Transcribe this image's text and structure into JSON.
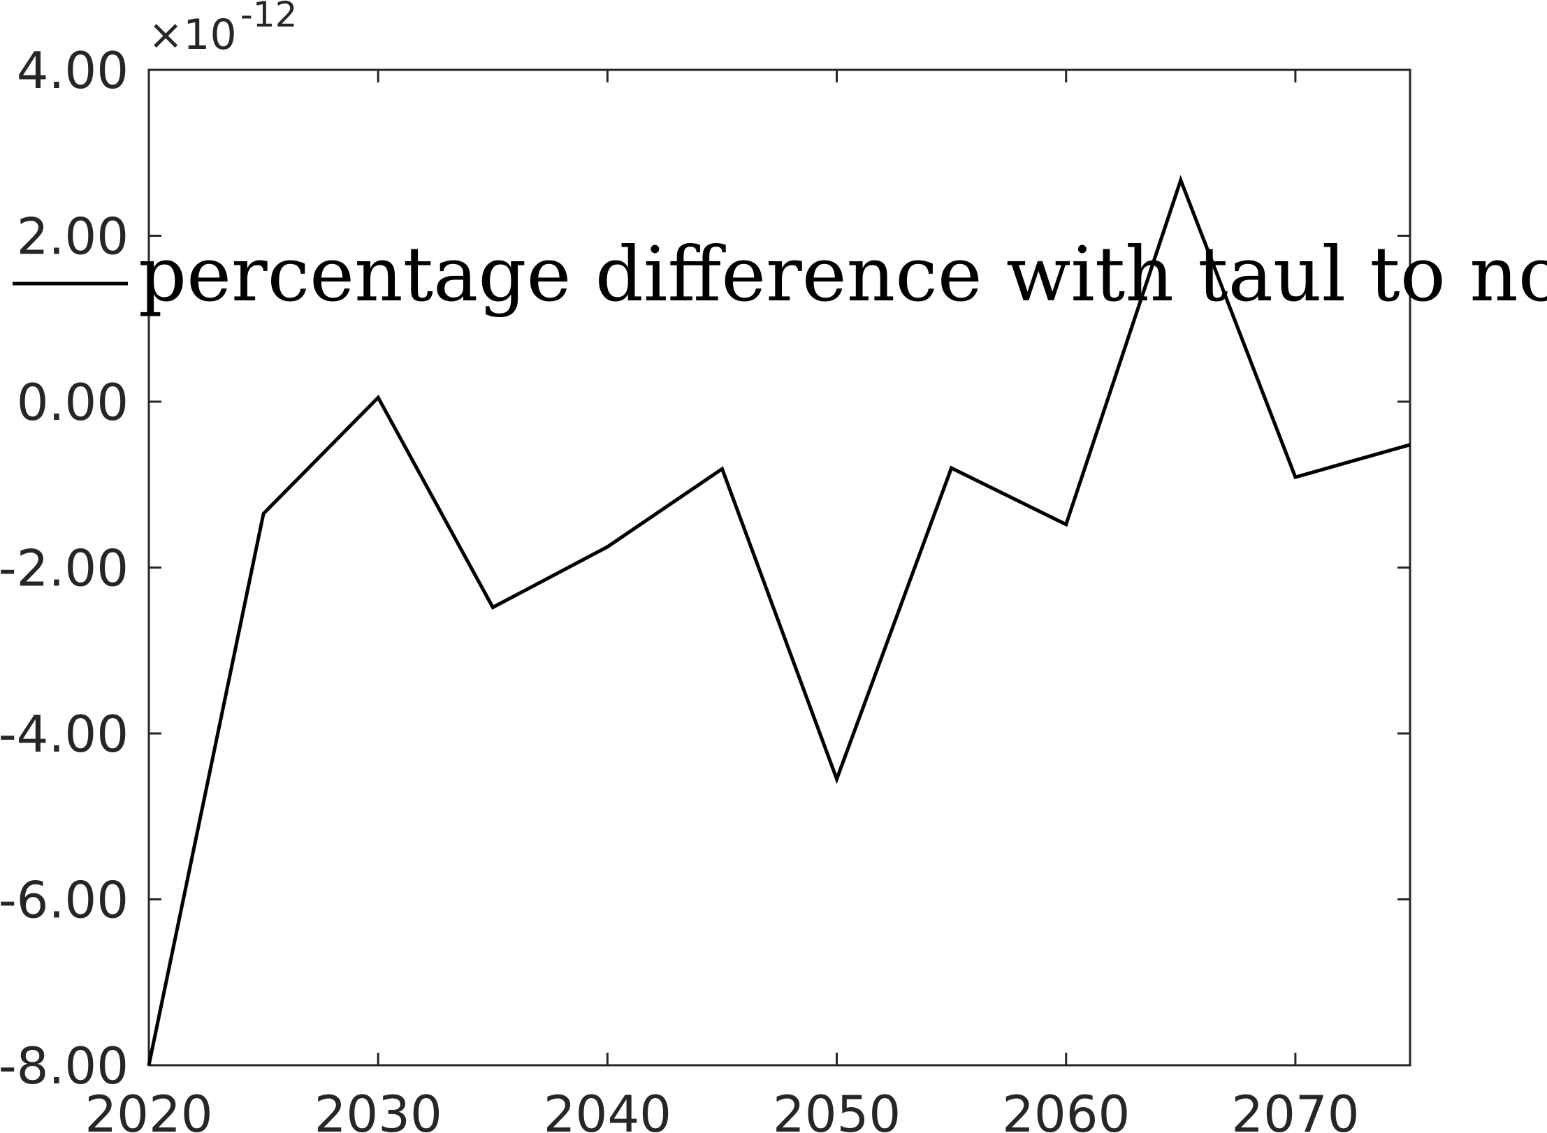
{
  "chart_data": {
    "type": "line",
    "title": "",
    "xlabel": "",
    "ylabel": "",
    "x": [
      2020,
      2025,
      2030,
      2035,
      2040,
      2045,
      2050,
      2055,
      2060,
      2065,
      2070,
      2075
    ],
    "series": [
      {
        "name": "percentage difference with taul to no taul",
        "values": [
          -8.0,
          -1.35,
          0.05,
          -2.48,
          -1.75,
          -0.81,
          -4.55,
          -0.8,
          -1.48,
          2.67,
          -0.91,
          -0.52
        ],
        "color": "#000000"
      }
    ],
    "y_multiplier": {
      "prefix": "×10",
      "exponent": "-12"
    },
    "xlim": [
      2020,
      2075
    ],
    "ylim": [
      -8.0,
      4.0
    ],
    "x_ticks": [
      2020,
      2030,
      2040,
      2050,
      2060,
      2070
    ],
    "x_tick_labels": [
      "2020",
      "2030",
      "2040",
      "2050",
      "2060",
      "2070"
    ],
    "y_ticks": [
      -8,
      -6,
      -4,
      -2,
      0,
      2,
      4
    ],
    "y_tick_labels": [
      "-8.00",
      "-6.00",
      "-4.00",
      "-2.00",
      "0.00",
      "2.00",
      "4.00"
    ],
    "grid": false,
    "legend_position": "top-center",
    "legend_label": "percentage difference with taul to no taul",
    "axis_color": "#262626",
    "line_color": "#000000"
  }
}
